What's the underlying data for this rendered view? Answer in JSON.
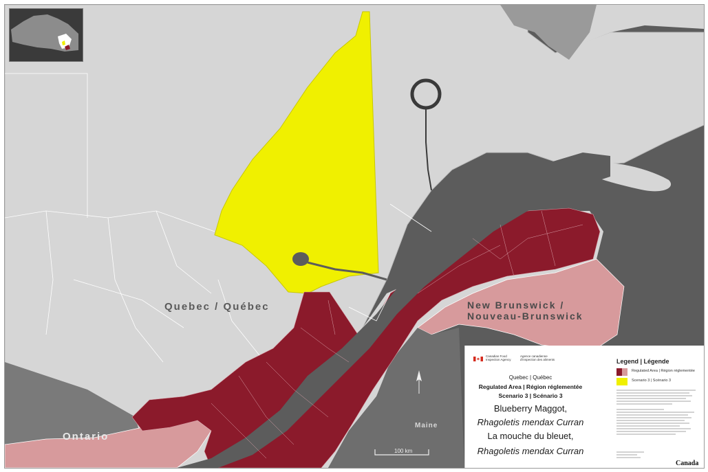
{
  "map": {
    "labels": {
      "quebec": "Quebec / Québec",
      "new_brunswick_line1": "New Brunswick /",
      "new_brunswick_line2": "Nouveau-Brunswick",
      "ontario": "Ontario",
      "maine": "Maine"
    },
    "scale_bar_label": "100 km",
    "colors": {
      "land": "#d6d6d6",
      "water": "#5c5c5c",
      "regulated_area": "#8b1a2b",
      "neighbour_regulated": "#d79a9c",
      "scenario3": "#f0f000",
      "boundary": "#ffffff"
    }
  },
  "infobox": {
    "agency_en": "Canadian Food Inspection Agency",
    "agency_fr": "Agence canadienne d'inspection des aliments",
    "region": "Quebec  |  Québec",
    "area": "Regulated Area  |  Région réglementée",
    "scenario": "Scenario 3  |  Scénario 3",
    "common_name_en": "Blueberry Maggot,",
    "scientific_name_1": "Rhagoletis mendax Curran",
    "common_name_fr": "La mouche du bleuet,",
    "scientific_name_2": "Rhagoletis mendax Curran",
    "wordmark": "Canada"
  },
  "legend": {
    "title": "Legend  |  Légende",
    "items": [
      {
        "label": "Regulated Area | Région réglementée",
        "color": "#8b1a2b"
      },
      {
        "label": "Scenario 3 | Scénario 3",
        "color": "#f0f000"
      }
    ]
  }
}
